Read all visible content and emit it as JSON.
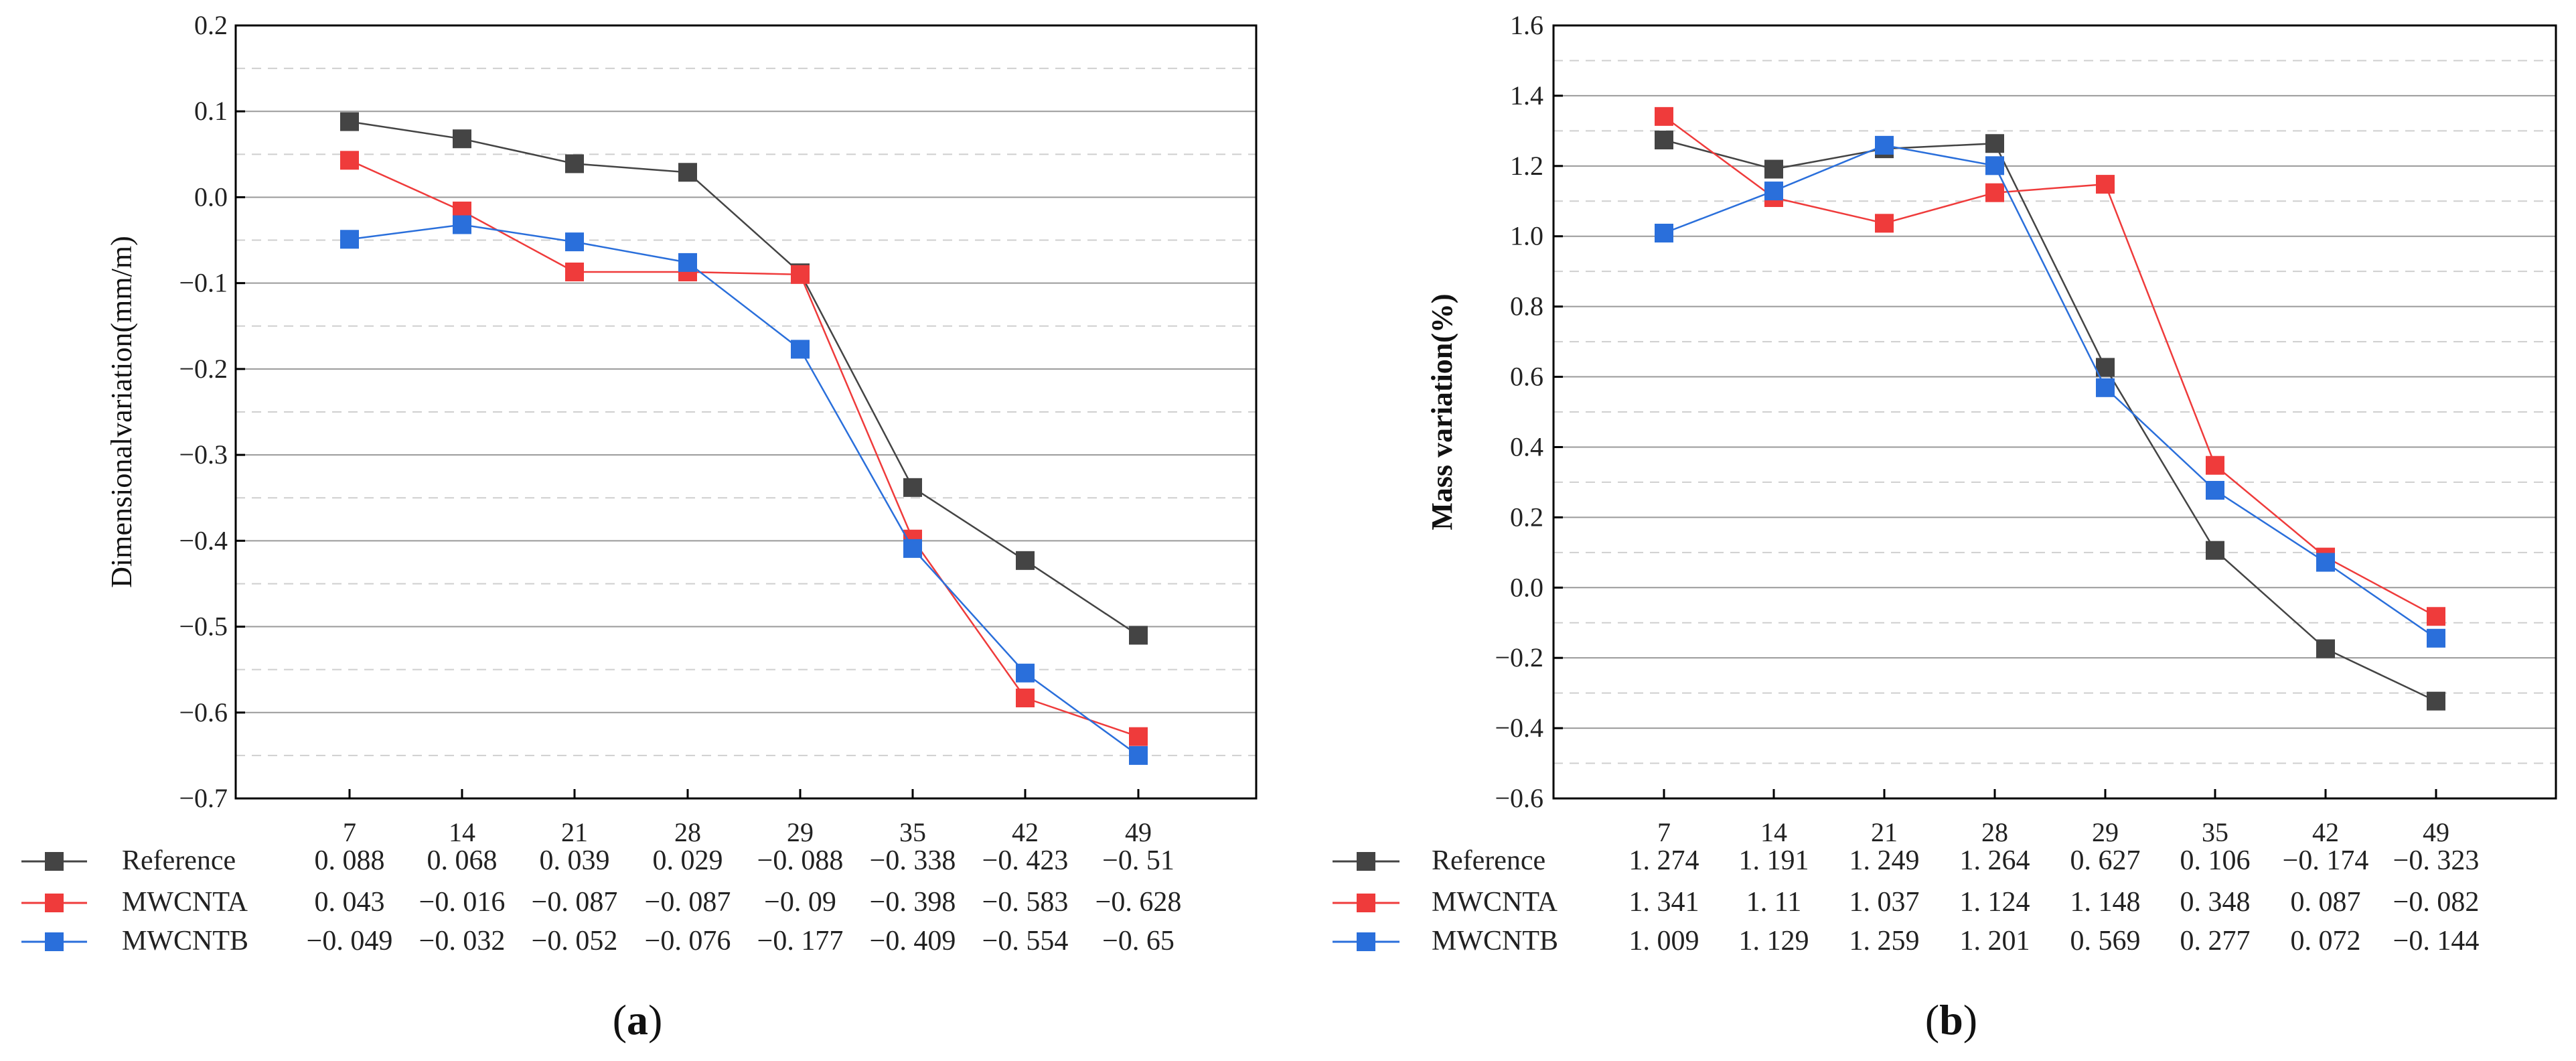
{
  "chart_data": [
    {
      "type": "line",
      "panel_label": "(a)",
      "ylabel": "Dimensionalvariation(mm/m)",
      "categories": [
        "7",
        "14",
        "21",
        "28",
        "29",
        "35",
        "42",
        "49"
      ],
      "ylim": [
        -0.7,
        0.2
      ],
      "yticks": [
        "0.2",
        "0.1",
        "0.0",
        "−0.1",
        "−0.2",
        "−0.3",
        "−0.4",
        "−0.5",
        "−0.6",
        "−0.7"
      ],
      "series": [
        {
          "name": "Reference",
          "color": "#444444",
          "values": [
            0.088,
            0.068,
            0.039,
            0.029,
            -0.088,
            -0.338,
            -0.423,
            -0.51
          ],
          "labels": [
            "0. 088",
            "0. 068",
            "0. 039",
            "0. 029",
            "−0. 088",
            "−0. 338",
            "−0. 423",
            "−0. 51"
          ]
        },
        {
          "name": "MWCNTA",
          "color": "#ef3b3b",
          "values": [
            0.043,
            -0.016,
            -0.087,
            -0.087,
            -0.09,
            -0.398,
            -0.583,
            -0.628
          ],
          "labels": [
            "0. 043",
            "−0. 016",
            "−0. 087",
            "−0. 087",
            "−0. 09",
            "−0. 398",
            "−0. 583",
            "−0. 628"
          ]
        },
        {
          "name": "MWCNTB",
          "color": "#2a6fdb",
          "values": [
            -0.049,
            -0.032,
            -0.052,
            -0.076,
            -0.177,
            -0.409,
            -0.554,
            -0.65
          ],
          "labels": [
            "−0. 049",
            "−0. 032",
            "−0. 052",
            "−0. 076",
            "−0. 177",
            "−0. 409",
            "−0. 554",
            "−0. 65"
          ]
        }
      ]
    },
    {
      "type": "line",
      "panel_label": "(b)",
      "ylabel": "Mass variation(%)",
      "categories": [
        "7",
        "14",
        "21",
        "28",
        "29",
        "35",
        "42",
        "49"
      ],
      "ylim": [
        -0.6,
        1.6
      ],
      "yticks": [
        "1.6",
        "1.4",
        "1.2",
        "1.0",
        "0.8",
        "0.6",
        "0.4",
        "0.2",
        "0.0",
        "−0.2",
        "−0.4",
        "−0.6"
      ],
      "series": [
        {
          "name": "Reference",
          "color": "#444444",
          "values": [
            1.274,
            1.191,
            1.249,
            1.264,
            0.627,
            0.106,
            -0.174,
            -0.323
          ],
          "labels": [
            "1. 274",
            "1. 191",
            "1. 249",
            "1. 264",
            "0. 627",
            "0. 106",
            "−0. 174",
            "−0. 323"
          ]
        },
        {
          "name": "MWCNTA",
          "color": "#ef3b3b",
          "values": [
            1.341,
            1.11,
            1.037,
            1.124,
            1.148,
            0.348,
            0.087,
            -0.082
          ],
          "labels": [
            "1. 341",
            "1. 11",
            "1. 037",
            "1. 124",
            "1. 148",
            "0. 348",
            "0. 087",
            "−0. 082"
          ]
        },
        {
          "name": "MWCNTB",
          "color": "#2a6fdb",
          "values": [
            1.009,
            1.129,
            1.259,
            1.201,
            0.569,
            0.277,
            0.072,
            -0.144
          ],
          "labels": [
            "1. 009",
            "1. 129",
            "1. 259",
            "1. 201",
            "0. 569",
            "0. 277",
            "0. 072",
            "−0. 144"
          ]
        }
      ]
    }
  ]
}
